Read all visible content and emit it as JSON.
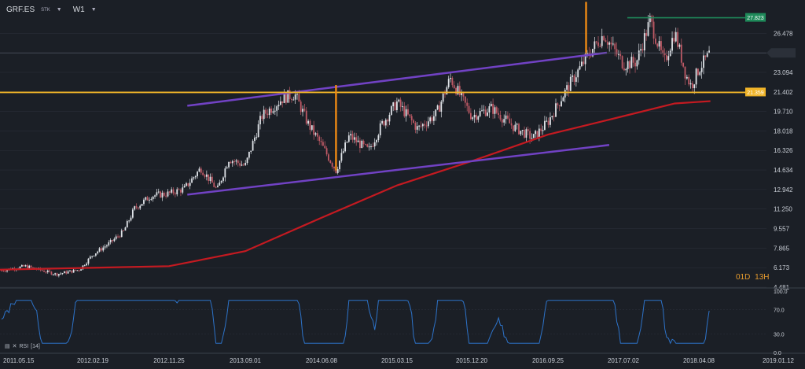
{
  "header": {
    "symbol": "GRF.ES",
    "exchange": "STK",
    "timeframe": "W1"
  },
  "chart_data": {
    "type": "candlestick",
    "price_axis": {
      "ticks": [
        "26.478",
        "24.780",
        "23.094",
        "21.402",
        "19.710",
        "18.018",
        "16.326",
        "14.634",
        "12.942",
        "11.250",
        "9.557",
        "7.865",
        "6.173",
        "4.481"
      ],
      "tick_values": [
        26.478,
        24.78,
        23.094,
        21.402,
        19.71,
        18.018,
        16.326,
        14.634,
        12.942,
        11.25,
        9.557,
        7.865,
        6.173,
        4.481
      ],
      "current_price": "24.780",
      "labels": [
        {
          "text": "27.823",
          "value": 27.823,
          "color": "#1f8a5a"
        },
        {
          "text": "21.359",
          "value": 21.359,
          "color": "#f0b429"
        }
      ]
    },
    "time_axis": {
      "ticks": [
        "2011.05.15",
        "2012.02.19",
        "2012.11.25",
        "2013.09.01",
        "2014.06.08",
        "2015.03.15",
        "2015.12.20",
        "2016.09.25",
        "2017.07.02",
        "2018.04.08",
        "2019.01.12"
      ]
    },
    "series_close": [
      {
        "date": "2011.05.15",
        "value": 5.9
      },
      {
        "date": "2011.08.01",
        "value": 6.3
      },
      {
        "date": "2011.11.01",
        "value": 5.6
      },
      {
        "date": "2012.01.10",
        "value": 6.0
      },
      {
        "date": "2012.02.19",
        "value": 7.3
      },
      {
        "date": "2012.04.20",
        "value": 8.3
      },
      {
        "date": "2012.06.10",
        "value": 9.3
      },
      {
        "date": "2012.07.20",
        "value": 11.3
      },
      {
        "date": "2012.09.20",
        "value": 12.4
      },
      {
        "date": "2012.11.25",
        "value": 12.6
      },
      {
        "date": "2013.01.20",
        "value": 13.0
      },
      {
        "date": "2013.03.20",
        "value": 14.8
      },
      {
        "date": "2013.05.20",
        "value": 12.9
      },
      {
        "date": "2013.07.01",
        "value": 15.6
      },
      {
        "date": "2013.09.01",
        "value": 15.0
      },
      {
        "date": "2013.11.01",
        "value": 19.3
      },
      {
        "date": "2014.01.20",
        "value": 20.9
      },
      {
        "date": "2014.03.01",
        "value": 21.2
      },
      {
        "date": "2014.04.20",
        "value": 18.6
      },
      {
        "date": "2014.06.08",
        "value": 16.8
      },
      {
        "date": "2014.08.01",
        "value": 14.6
      },
      {
        "date": "2014.09.20",
        "value": 17.6
      },
      {
        "date": "2014.12.01",
        "value": 16.3
      },
      {
        "date": "2015.01.20",
        "value": 18.6
      },
      {
        "date": "2015.03.15",
        "value": 20.5
      },
      {
        "date": "2015.06.01",
        "value": 18.2
      },
      {
        "date": "2015.08.10",
        "value": 19.5
      },
      {
        "date": "2015.10.01",
        "value": 22.6
      },
      {
        "date": "2015.12.20",
        "value": 19.3
      },
      {
        "date": "2016.03.01",
        "value": 20.0
      },
      {
        "date": "2016.05.20",
        "value": 18.4
      },
      {
        "date": "2016.08.01",
        "value": 17.4
      },
      {
        "date": "2016.09.25",
        "value": 18.8
      },
      {
        "date": "2016.11.20",
        "value": 21.1
      },
      {
        "date": "2017.01.10",
        "value": 23.0
      },
      {
        "date": "2017.03.01",
        "value": 24.9
      },
      {
        "date": "2017.04.20",
        "value": 26.4
      },
      {
        "date": "2017.07.02",
        "value": 23.8
      },
      {
        "date": "2017.08.20",
        "value": 24.0
      },
      {
        "date": "2017.10.10",
        "value": 27.6
      },
      {
        "date": "2017.12.01",
        "value": 23.9
      },
      {
        "date": "2018.01.10",
        "value": 26.6
      },
      {
        "date": "2018.02.20",
        "value": 22.9
      },
      {
        "date": "2018.03.10",
        "value": 21.9
      },
      {
        "date": "2018.04.08",
        "value": 23.4
      },
      {
        "date": "2018.05.20",
        "value": 24.8
      }
    ],
    "moving_average": [
      {
        "date": "2011.05.15",
        "value": 6.0
      },
      {
        "date": "2012.11.25",
        "value": 6.3
      },
      {
        "date": "2013.09.01",
        "value": 7.6
      },
      {
        "date": "2014.06.08",
        "value": 10.5
      },
      {
        "date": "2015.03.15",
        "value": 13.3
      },
      {
        "date": "2015.12.20",
        "value": 15.4
      },
      {
        "date": "2016.09.25",
        "value": 17.7
      },
      {
        "date": "2017.07.02",
        "value": 19.3
      },
      {
        "date": "2018.01.10",
        "value": 20.4
      },
      {
        "date": "2018.05.20",
        "value": 20.6
      }
    ],
    "overlays": {
      "channel_upper": [
        {
          "date": "2013.02.01",
          "value": 20.2
        },
        {
          "date": "2017.05.01",
          "value": 24.8
        }
      ],
      "channel_lower": [
        {
          "date": "2013.02.01",
          "value": 12.5
        },
        {
          "date": "2017.05.10",
          "value": 16.8
        }
      ],
      "horizontal_level": 21.359,
      "high_level": 27.823,
      "vertical_markers": [
        {
          "date": "2014.08.01",
          "from": 14.6,
          "to": 22.0
        },
        {
          "date": "2017.02.15",
          "from": 24.7,
          "to": 29.2
        }
      ]
    },
    "indicator": {
      "name": "RSI",
      "period": "14",
      "axis_ticks": [
        "100.0",
        "70.0",
        "30.0",
        "0.0"
      ],
      "tick_values": [
        100,
        70,
        30,
        0
      ]
    },
    "corner_label": {
      "left": "01D",
      "right": "13H"
    }
  },
  "colors": {
    "background": "#1b1f26",
    "grid": "#2a2f38",
    "bull": "#dfe3e8",
    "bear": "#c05a66",
    "channel": "#7142c4",
    "level": "#f0b429",
    "ma": "#c41a21",
    "rsi": "#2d73c9",
    "marker": "#ee8a14"
  }
}
